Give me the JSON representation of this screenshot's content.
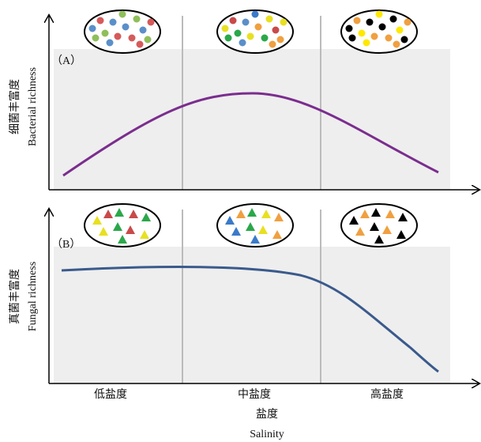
{
  "panels": [
    {
      "label": "（A）",
      "y_label_zh": "细菌丰富度",
      "y_label_en": "Bacterial richness"
    },
    {
      "label": "（B）",
      "y_label_zh": "真菌丰富度",
      "y_label_en": "Fungal richness"
    }
  ],
  "x_axis": {
    "categories": [
      "低盐度",
      "中盐度",
      "高盐度"
    ],
    "title_zh": "盐度",
    "title_en": "Salinity"
  }
}
